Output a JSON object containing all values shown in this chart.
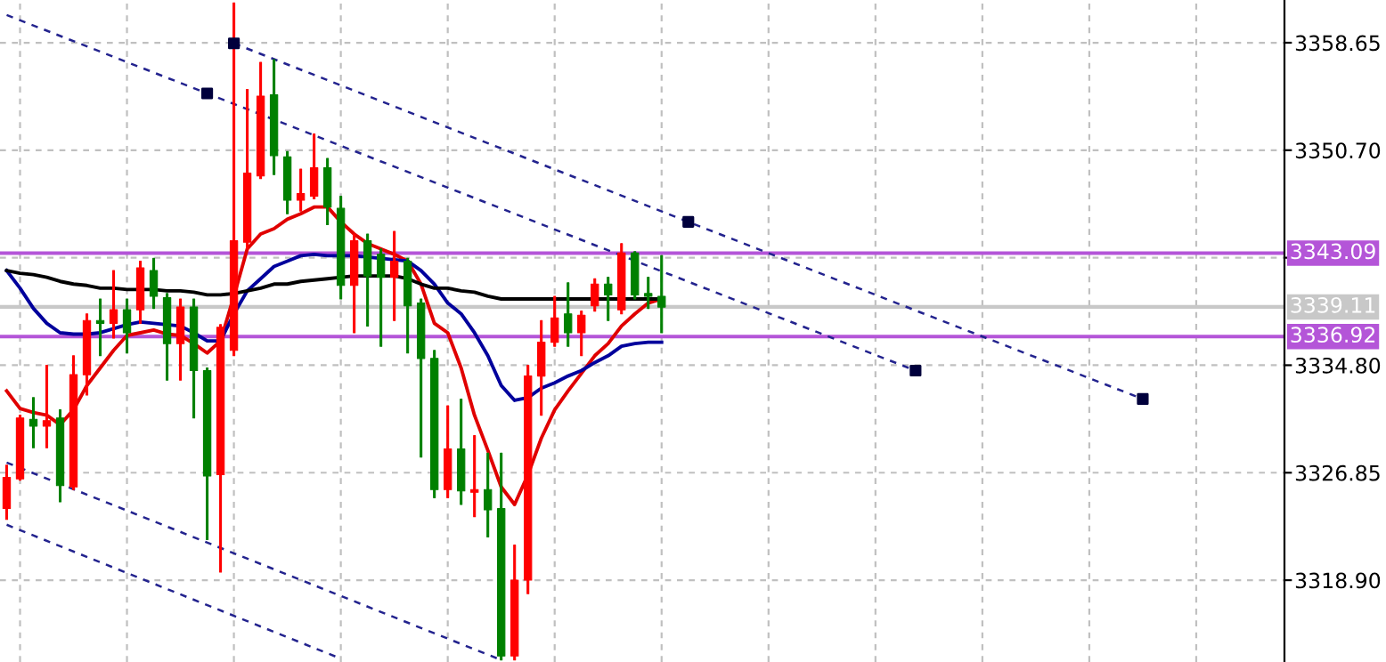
{
  "chart_data": {
    "type": "candlestick",
    "categories": [
      null,
      null,
      null,
      null,
      null,
      null,
      null,
      null,
      null,
      null,
      null,
      null,
      null,
      null,
      null,
      null,
      null,
      null,
      null,
      null,
      null,
      null,
      null,
      null,
      null,
      null,
      null,
      null,
      null,
      null,
      null,
      null,
      null,
      null,
      null,
      null,
      null,
      null,
      null,
      null,
      null,
      null,
      null,
      null,
      null,
      null,
      null,
      null,
      null,
      null,
      null,
      null,
      null,
      null,
      null,
      null,
      null,
      null,
      null,
      null,
      null,
      null,
      null,
      null,
      null,
      null,
      null,
      null,
      null,
      null,
      null,
      null,
      null,
      null,
      null,
      null,
      null,
      null,
      null,
      null,
      null,
      null,
      null,
      null,
      null,
      null,
      null,
      null,
      null,
      null,
      null,
      null,
      null,
      null,
      null,
      null
    ],
    "ohlc": [
      [
        3324.2,
        3327.4,
        3323.4,
        3326.5
      ],
      [
        3326.4,
        3331.1,
        3326.3,
        3330.9
      ],
      [
        3330.8,
        3332.4,
        3328.7,
        3330.3
      ],
      [
        3330.3,
        3334.8,
        3328.7,
        3330.7
      ],
      [
        3330.9,
        3331.5,
        3324.7,
        3325.9
      ],
      [
        3325.8,
        3335.5,
        3325.6,
        3334.1
      ],
      [
        3334.1,
        3338.6,
        3332.6,
        3338.1
      ],
      [
        3338.1,
        3339.7,
        3335.5,
        3337.9
      ],
      [
        3337.9,
        3341.8,
        3336.8,
        3338.9
      ],
      [
        3338.9,
        3339.7,
        3335.7,
        3337.2
      ],
      [
        3338.9,
        3342.5,
        3337.9,
        3342.0
      ],
      [
        3341.8,
        3342.7,
        3339.0,
        3339.9
      ],
      [
        3339.8,
        3340.1,
        3333.7,
        3336.4
      ],
      [
        3336.4,
        3339.7,
        3333.7,
        3339.1
      ],
      [
        3339.1,
        3339.7,
        3330.9,
        3334.4
      ],
      [
        3334.4,
        3334.6,
        3321.9,
        3326.6
      ],
      [
        3326.7,
        3337.8,
        3319.5,
        3337.6
      ],
      [
        3335.9,
        3361.6,
        3335.5,
        3344.0
      ],
      [
        3343.9,
        3355.2,
        3343.4,
        3349.0
      ],
      [
        3348.8,
        3357.2,
        3348.6,
        3354.7
      ],
      [
        3354.8,
        3357.4,
        3348.9,
        3350.3
      ],
      [
        3350.2,
        3350.6,
        3346.0,
        3347.0
      ],
      [
        3347.0,
        3349.3,
        3346.2,
        3347.5
      ],
      [
        3347.3,
        3351.9,
        3347.1,
        3349.4
      ],
      [
        3349.4,
        3350.1,
        3345.2,
        3346.5
      ],
      [
        3346.4,
        3347.3,
        3339.7,
        3340.7
      ],
      [
        3340.7,
        3344.5,
        3337.2,
        3344.0
      ],
      [
        3344.0,
        3344.5,
        3337.7,
        3341.4
      ],
      [
        3343.0,
        3343.4,
        3336.2,
        3341.3
      ],
      [
        3341.3,
        3344.7,
        3338.1,
        3342.5
      ],
      [
        3342.5,
        3342.7,
        3335.7,
        3339.2
      ],
      [
        3339.4,
        3339.7,
        3328.0,
        3335.3
      ],
      [
        3335.3,
        3335.9,
        3325.0,
        3325.6
      ],
      [
        3325.6,
        3331.8,
        3325.0,
        3328.6
      ],
      [
        3328.6,
        3332.3,
        3324.5,
        3325.5
      ],
      [
        3325.4,
        3329.6,
        3323.6,
        3325.6
      ],
      [
        3325.6,
        3328.3,
        3322.1,
        3324.1
      ],
      [
        3324.2,
        3328.3,
        3313.0,
        3313.3
      ],
      [
        3313.3,
        3321.5,
        3313.0,
        3318.9
      ],
      [
        3318.9,
        3334.8,
        3317.9,
        3334.0
      ],
      [
        3334.0,
        3338.1,
        3331.1,
        3336.5
      ],
      [
        3336.5,
        3339.9,
        3336.2,
        3338.3
      ],
      [
        3338.6,
        3340.9,
        3336.2,
        3337.2
      ],
      [
        3337.2,
        3338.8,
        3335.5,
        3338.5
      ],
      [
        3339.2,
        3341.2,
        3338.8,
        3340.8
      ],
      [
        3340.8,
        3341.3,
        3338.1,
        3340.0
      ],
      [
        3338.9,
        3343.8,
        3338.6,
        3343.1
      ],
      [
        3343.1,
        3343.2,
        3339.7,
        3340.0
      ],
      [
        3340.1,
        3341.3,
        3339.0,
        3339.9
      ],
      [
        3339.9,
        3342.9,
        3337.2,
        3339.1
      ],
      null,
      null,
      null,
      null,
      null,
      null,
      null,
      null,
      null,
      null,
      null,
      null,
      null,
      null,
      null,
      null,
      null,
      null,
      null,
      null,
      null,
      null,
      null,
      null,
      null,
      null,
      null,
      null,
      null,
      null,
      null,
      null,
      null,
      null,
      null,
      null,
      null,
      null,
      null,
      null,
      null,
      null,
      null,
      null,
      null,
      null
    ],
    "colors": [
      "#ff0000",
      "#ff0000",
      "#008000",
      "#ff0000",
      "#008000",
      "#ff0000",
      "#ff0000",
      "#008000",
      "#ff0000",
      "#008000",
      "#ff0000",
      "#008000",
      "#008000",
      "#ff0000",
      "#008000",
      "#008000",
      "#ff0000",
      "#ff0000",
      "#ff0000",
      "#ff0000",
      "#008000",
      "#008000",
      "#ff0000",
      "#ff0000",
      "#008000",
      "#008000",
      "#ff0000",
      "#008000",
      "#008000",
      "#ff0000",
      "#008000",
      "#008000",
      "#008000",
      "#ff0000",
      "#008000",
      "#ff0000",
      "#008000",
      "#008000",
      "#ff0000",
      "#ff0000",
      "#ff0000",
      "#ff0000",
      "#008000",
      "#ff0000",
      "#ff0000",
      "#008000",
      "#ff0000",
      "#008000",
      "#008000",
      "#008000",
      null,
      null,
      null,
      null,
      null,
      null,
      null,
      null,
      null,
      null,
      null,
      null,
      null,
      null,
      null,
      null,
      null,
      null,
      null,
      null,
      null,
      null,
      null,
      null,
      null,
      null,
      null,
      null,
      null,
      null,
      null,
      null,
      null,
      null,
      null,
      null,
      null,
      null,
      null,
      null,
      null,
      null,
      null,
      null,
      null,
      null
    ],
    "series": [
      {
        "type": "line",
        "color": "#e00000",
        "values": [
          3332.9,
          3331.6,
          3331.3,
          3331.1,
          3330.4,
          3331.5,
          3333.3,
          3334.6,
          3335.9,
          3337.0,
          3337.2,
          3337.4,
          3337.1,
          3337.0,
          3336.4,
          3335.7,
          3336.6,
          3339.9,
          3343.4,
          3344.5,
          3344.9,
          3345.6,
          3346.0,
          3346.5,
          3346.5,
          3345.4,
          3344.5,
          3343.8,
          3343.4,
          3343.0,
          3342.5,
          3340.8,
          3337.9,
          3337.2,
          3334.6,
          3331.1,
          3328.5,
          3325.8,
          3324.5,
          3326.7,
          3329.4,
          3331.5,
          3332.9,
          3334.2,
          3335.5,
          3336.4,
          3337.7,
          3338.6,
          3339.4,
          3339.7,
          null,
          null,
          null,
          null,
          null,
          null,
          null,
          null,
          null,
          null,
          null,
          null,
          null,
          null,
          null,
          null,
          null,
          null,
          null,
          null,
          null,
          null,
          null,
          null,
          null,
          null,
          null,
          null,
          null,
          null,
          null,
          null,
          null,
          null,
          null,
          null,
          null,
          null,
          null,
          null,
          null,
          null,
          null,
          null,
          null,
          null
        ]
      },
      {
        "type": "line",
        "color": "#00009c",
        "values": [
          3341.8,
          3340.5,
          3339.0,
          3337.9,
          3337.2,
          3337.1,
          3337.1,
          3337.2,
          3337.5,
          3337.8,
          3338.0,
          3337.9,
          3337.8,
          3337.7,
          3337.2,
          3336.6,
          3336.6,
          3338.6,
          3340.3,
          3341.2,
          3342.1,
          3342.5,
          3342.9,
          3343.0,
          3342.9,
          3342.9,
          3342.9,
          3342.8,
          3342.7,
          3342.6,
          3342.5,
          3341.8,
          3340.8,
          3339.4,
          3338.6,
          3337.2,
          3335.5,
          3333.3,
          3332.2,
          3332.4,
          3333.1,
          3333.5,
          3334.0,
          3334.4,
          3335.0,
          3335.5,
          3336.2,
          3336.4,
          3336.5,
          3336.5,
          null,
          null,
          null,
          null,
          null,
          null,
          null,
          null,
          null,
          null,
          null,
          null,
          null,
          null,
          null,
          null,
          null,
          null,
          null,
          null,
          null,
          null,
          null,
          null,
          null,
          null,
          null,
          null,
          null,
          null,
          null,
          null,
          null,
          null,
          null,
          null,
          null,
          null,
          null,
          null,
          null,
          null,
          null,
          null,
          null,
          null
        ]
      },
      {
        "type": "line",
        "color": "#000000",
        "values": [
          3341.8,
          3341.6,
          3341.5,
          3341.3,
          3341.0,
          3340.8,
          3340.7,
          3340.5,
          3340.5,
          3340.4,
          3340.4,
          3340.4,
          3340.3,
          3340.3,
          3340.2,
          3340.0,
          3340.0,
          3340.1,
          3340.3,
          3340.5,
          3340.8,
          3340.8,
          3341.0,
          3341.1,
          3341.2,
          3341.3,
          3341.4,
          3341.4,
          3341.4,
          3341.4,
          3341.2,
          3340.8,
          3340.5,
          3340.5,
          3340.3,
          3340.2,
          3339.9,
          3339.7,
          3339.7,
          3339.7,
          3339.7,
          3339.7,
          3339.7,
          3339.7,
          3339.7,
          3339.7,
          3339.7,
          3339.7,
          3339.7,
          3339.7,
          null,
          null,
          null,
          null,
          null,
          null,
          null,
          null,
          null,
          null,
          null,
          null,
          null,
          null,
          null,
          null,
          null,
          null,
          null,
          null,
          null,
          null,
          null,
          null,
          null,
          null,
          null,
          null,
          null,
          null,
          null,
          null,
          null,
          null,
          null,
          null,
          null,
          null,
          null,
          null,
          null,
          null,
          null,
          null,
          null,
          null
        ]
      },
      {
        "type": "line",
        "color": "#23238e",
        "line_style": "dashed",
        "values": [
          null,
          null,
          null,
          null,
          null,
          null,
          null,
          null,
          null,
          null,
          null,
          null,
          null,
          null,
          null,
          null,
          null,
          3358.6,
          null,
          null,
          null,
          null,
          null,
          null,
          null,
          null,
          null,
          null,
          null,
          null,
          null,
          null,
          null,
          null,
          null,
          null,
          null,
          null,
          null,
          null,
          null,
          null,
          null,
          null,
          null,
          null,
          null,
          null,
          null,
          null,
          null,
          3345.4,
          null,
          null,
          null,
          null,
          null,
          null,
          null,
          null,
          null,
          null,
          null,
          null,
          null,
          null,
          null,
          null,
          null,
          null,
          null,
          null,
          null,
          null,
          null,
          null,
          null,
          null,
          null,
          null,
          null,
          null,
          null,
          null,
          null,
          3332.3,
          null,
          null,
          null,
          null,
          null,
          null,
          null,
          null,
          null,
          null
        ]
      },
      {
        "type": "line",
        "color": "#23238e",
        "line_style": "dashed",
        "values": [
          3360.7,
          null,
          null,
          null,
          null,
          null,
          null,
          null,
          null,
          null,
          null,
          null,
          null,
          null,
          null,
          3354.9,
          null,
          null,
          null,
          null,
          null,
          null,
          null,
          null,
          null,
          null,
          null,
          null,
          null,
          null,
          null,
          null,
          null,
          null,
          null,
          null,
          null,
          null,
          null,
          null,
          null,
          null,
          null,
          null,
          null,
          null,
          null,
          null,
          null,
          null,
          null,
          null,
          null,
          null,
          null,
          null,
          null,
          null,
          null,
          null,
          null,
          null,
          null,
          null,
          null,
          null,
          null,
          null,
          3334.4,
          null,
          null,
          null,
          null,
          null,
          null,
          null,
          null,
          null,
          null,
          null,
          null,
          null,
          null,
          null,
          null,
          null,
          null,
          null,
          null,
          null,
          null,
          null,
          null,
          null,
          null,
          null
        ]
      },
      {
        "type": "line",
        "color": "#23238e",
        "line_style": "dashed",
        "values": [
          3327.6,
          null,
          null,
          null,
          null,
          null,
          null,
          null,
          null,
          null,
          null,
          null,
          null,
          null,
          null,
          null,
          null,
          null,
          null,
          null,
          null,
          null,
          null,
          null,
          null,
          null,
          null,
          null,
          null,
          null,
          null,
          null,
          null,
          null,
          null,
          null,
          null,
          3313.0,
          null,
          null,
          null,
          null,
          null,
          null,
          null,
          null,
          null,
          null,
          null,
          null,
          null,
          null,
          null,
          null,
          null,
          null,
          null,
          null,
          null,
          null,
          null,
          null,
          null,
          null,
          null,
          null,
          null,
          null,
          null,
          null,
          null,
          null,
          null,
          null,
          null,
          null,
          null,
          null,
          null,
          null,
          null,
          null,
          null,
          null,
          null,
          null,
          null,
          null,
          null,
          null,
          null,
          null,
          null,
          null,
          null,
          null
        ]
      },
      {
        "type": "line",
        "color": "#23238e",
        "line_style": "dashed",
        "values": [
          3323.0,
          null,
          null,
          null,
          null,
          null,
          null,
          null,
          null,
          null,
          null,
          null,
          null,
          null,
          null,
          null,
          null,
          null,
          null,
          null,
          null,
          null,
          null,
          null,
          null,
          3313.1,
          null,
          null,
          null,
          null,
          null,
          null,
          null,
          null,
          null,
          null,
          null,
          null,
          null,
          null,
          null,
          null,
          null,
          null,
          null,
          null,
          null,
          null,
          null,
          null,
          null,
          null,
          null,
          null,
          null,
          null,
          null,
          null,
          null,
          null,
          null,
          null,
          null,
          null,
          null,
          null,
          null,
          null,
          null,
          null,
          null,
          null,
          null,
          null,
          null,
          null,
          null,
          null,
          null,
          null,
          null,
          null,
          null,
          null,
          null,
          null,
          null,
          null,
          null,
          null,
          null,
          null,
          null,
          null,
          null,
          null
        ]
      },
      {
        "type": "scatter",
        "color": "#00003c",
        "marker": "square",
        "values": [
          null,
          null,
          null,
          null,
          null,
          null,
          null,
          null,
          null,
          null,
          null,
          null,
          null,
          null,
          null,
          3354.9,
          null,
          3358.6,
          null,
          null,
          null,
          null,
          null,
          null,
          null,
          null,
          null,
          null,
          null,
          null,
          null,
          null,
          null,
          null,
          null,
          null,
          null,
          null,
          null,
          null,
          null,
          null,
          null,
          null,
          null,
          null,
          null,
          null,
          null,
          null,
          null,
          3345.4,
          null,
          null,
          null,
          null,
          null,
          null,
          null,
          null,
          null,
          null,
          null,
          null,
          null,
          null,
          null,
          null,
          3334.4,
          null,
          null,
          null,
          null,
          null,
          null,
          null,
          null,
          null,
          null,
          null,
          null,
          null,
          null,
          null,
          null,
          3332.3,
          null,
          null,
          null,
          null,
          null,
          null,
          null,
          null,
          null,
          null
        ]
      }
    ],
    "ref_lines": [
      {
        "axis": "y",
        "value": 3343.09,
        "label": "3343.09",
        "color": "#b455d8"
      },
      {
        "axis": "y",
        "value": 3339.11,
        "label": "3339.11",
        "color": "#c8c8c8"
      },
      {
        "axis": "y",
        "value": 3336.92,
        "label": "3336.92",
        "color": "#b455d8"
      }
    ],
    "ylim": [
      3312.85,
      3361.81
    ],
    "yticks": [
      {
        "value": 3318.9,
        "label": "3318.90"
      },
      {
        "value": 3326.85,
        "label": "3326.85"
      },
      {
        "value": 3334.8,
        "label": "3334.80"
      },
      {
        "value": 3342.75,
        "label": null
      },
      {
        "value": 3350.7,
        "label": "3350.70"
      },
      {
        "value": 3358.65,
        "label": "3358.65"
      }
    ],
    "grid": true,
    "tick_labels": "y"
  }
}
